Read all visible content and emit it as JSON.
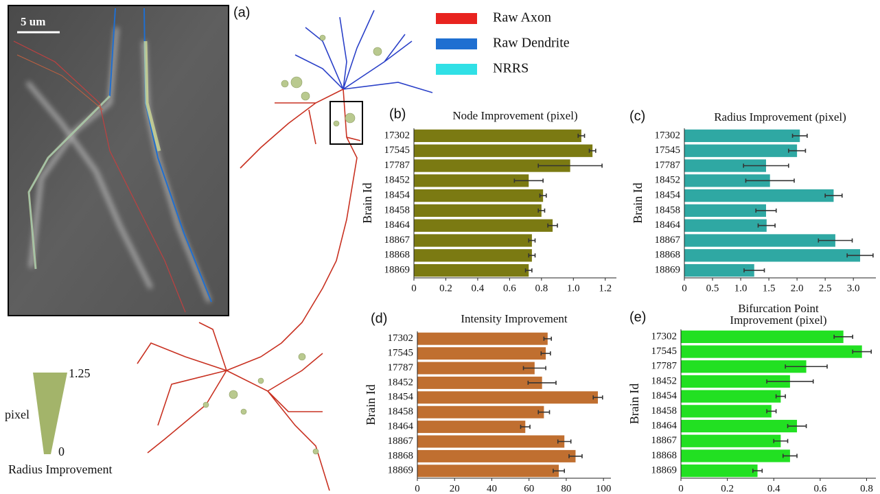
{
  "panel_a": {
    "label": "(a)",
    "scale_bar": "5 um",
    "legend": [
      {
        "name": "Raw Axon",
        "color": "#e8231f"
      },
      {
        "name": "Raw Dendrite",
        "color": "#1f6fd1"
      },
      {
        "name": "NRRS",
        "color": "#30e0e6"
      }
    ],
    "radius_legend": {
      "max": 1.25,
      "min": 0,
      "unit": "pixel",
      "title": "Radius Improvement",
      "color": "#a3b46a"
    }
  },
  "chart_data": [
    {
      "type": "bar",
      "panel": "(b)",
      "title": "Node Improvement (pixel)",
      "ylabel": "Brain Id",
      "color": "#7b7a12",
      "categories": [
        "17302",
        "17545",
        "17787",
        "18452",
        "18454",
        "18458",
        "18464",
        "18867",
        "18868",
        "18869"
      ],
      "values": [
        1.05,
        1.12,
        0.98,
        0.72,
        0.81,
        0.8,
        0.87,
        0.74,
        0.74,
        0.72
      ],
      "errors": [
        0.02,
        0.02,
        0.2,
        0.09,
        0.02,
        0.02,
        0.03,
        0.02,
        0.02,
        0.02
      ],
      "xlim": [
        0,
        1.27
      ],
      "xticks": [
        0,
        0.2,
        0.4,
        0.6,
        0.8,
        {
          "value": 1,
          "label": "1.0"
        },
        1.2
      ]
    },
    {
      "type": "bar",
      "panel": "(c)",
      "title": "Radius Improvement (pixel)",
      "ylabel": "Brain Id",
      "color": "#2fa8a3",
      "categories": [
        "17302",
        "17545",
        "17787",
        "18452",
        "18454",
        "18458",
        "18464",
        "18867",
        "18868",
        "18869"
      ],
      "values": [
        2.05,
        2.0,
        1.45,
        1.52,
        2.65,
        1.45,
        1.46,
        2.68,
        3.12,
        1.24
      ],
      "errors": [
        0.13,
        0.15,
        0.4,
        0.43,
        0.15,
        0.18,
        0.15,
        0.3,
        0.23,
        0.18
      ],
      "xlim": [
        0,
        3.4
      ],
      "xticks": [
        0,
        0.5,
        {
          "value": 1,
          "label": "1.0"
        },
        1.5,
        {
          "value": 2,
          "label": "2.0"
        },
        2.5,
        {
          "value": 3,
          "label": "3.0"
        }
      ]
    },
    {
      "type": "bar",
      "panel": "(d)",
      "title": "Intensity Improvement",
      "ylabel": "Brain Id",
      "color": "#c06f30",
      "categories": [
        "17302",
        "17545",
        "17787",
        "18452",
        "18454",
        "18458",
        "18464",
        "18867",
        "18868",
        "18869"
      ],
      "values": [
        70,
        69,
        63,
        67,
        97,
        68,
        58,
        79,
        85,
        76
      ],
      "errors": [
        2,
        2.5,
        6,
        7.5,
        2.5,
        3,
        2.5,
        3.5,
        3.5,
        3
      ],
      "xlim": [
        0,
        104
      ],
      "xticks": [
        0,
        20,
        40,
        60,
        80,
        100
      ]
    },
    {
      "type": "bar",
      "panel": "(e)",
      "title": [
        "Bifurcation Point",
        "Improvement (pixel)"
      ],
      "ylabel": "Brain Id",
      "color": "#22e022",
      "categories": [
        "17302",
        "17545",
        "17787",
        "18452",
        "18454",
        "18458",
        "18464",
        "18867",
        "18868",
        "18869"
      ],
      "values": [
        0.7,
        0.78,
        0.54,
        0.47,
        0.43,
        0.39,
        0.5,
        0.43,
        0.47,
        0.33
      ],
      "errors": [
        0.04,
        0.04,
        0.09,
        0.1,
        0.02,
        0.02,
        0.04,
        0.03,
        0.03,
        0.02
      ],
      "xlim": [
        0,
        0.84
      ],
      "xticks": [
        0,
        0.2,
        0.4,
        0.6,
        0.8
      ]
    }
  ]
}
